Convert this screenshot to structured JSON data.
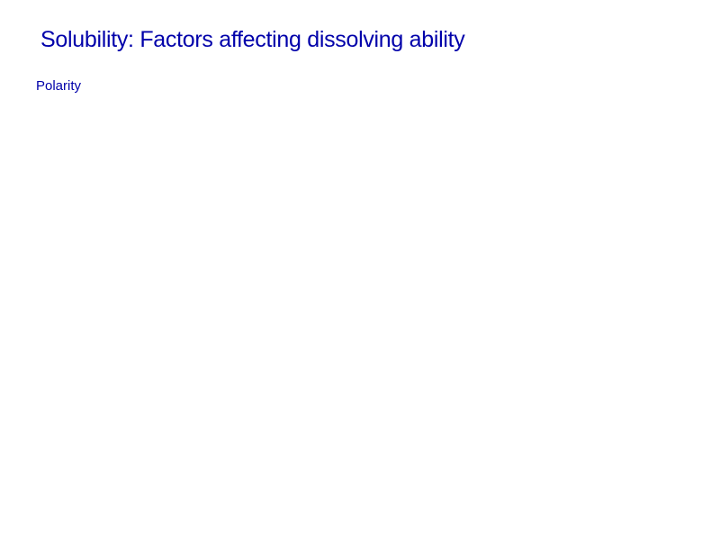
{
  "slide": {
    "title": "Solubility: Factors affecting dissolving ability",
    "subtitle": "Polarity",
    "background_color": "#ffffff",
    "text_color": "#0000aa",
    "title_fontsize": 25,
    "subtitle_fontsize": 15,
    "font_family": "Arial"
  }
}
